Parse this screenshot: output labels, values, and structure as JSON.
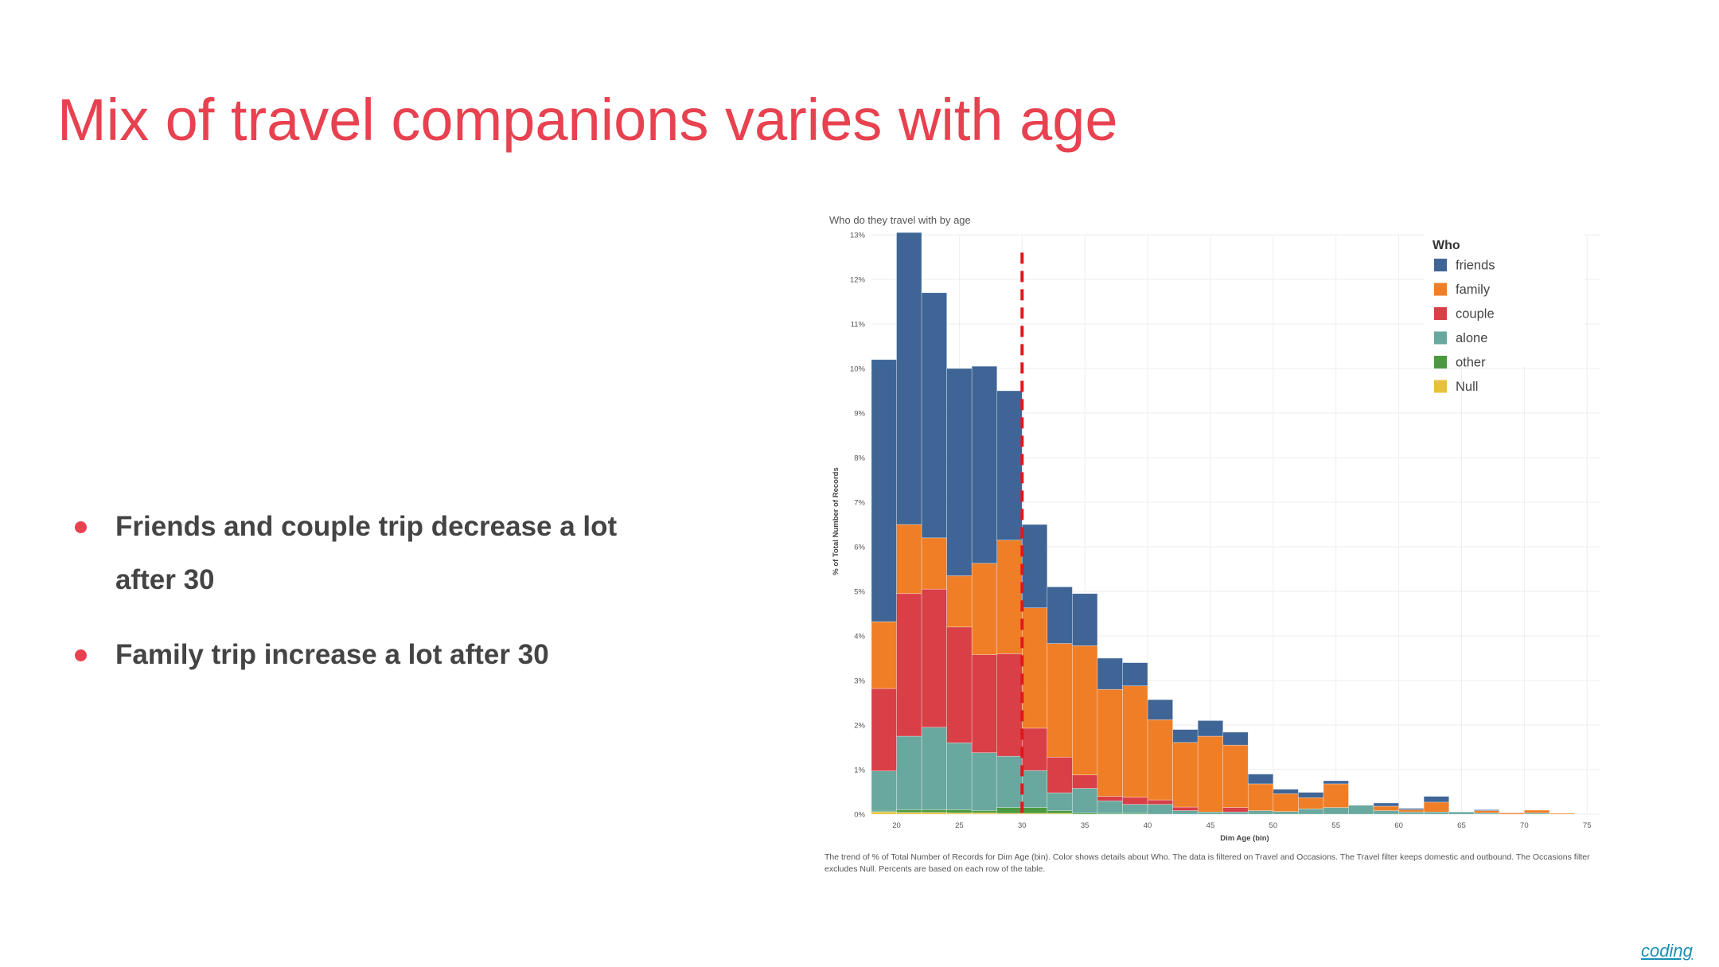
{
  "slide": {
    "title": "Mix of travel companions varies with age",
    "bullets": [
      "Friends and couple trip decrease a lot after 30",
      "Family trip increase a lot after 30"
    ],
    "footer_link": "coding"
  },
  "chart_data": {
    "type": "bar",
    "stacked": true,
    "title": "Who do they travel with by age",
    "xlabel": "Dim Age (bin)",
    "ylabel": "% of Total Number of Records",
    "xlim": [
      18,
      76
    ],
    "ylim": [
      0,
      13
    ],
    "x_ticks": [
      "20",
      "25",
      "30",
      "35",
      "40",
      "45",
      "50",
      "55",
      "60",
      "65",
      "70",
      "75"
    ],
    "y_ticks": [
      "0%",
      "1%",
      "2%",
      "3%",
      "4%",
      "5%",
      "6%",
      "7%",
      "8%",
      "9%",
      "10%",
      "11%",
      "12%",
      "13%"
    ],
    "grid": true,
    "bin_width": 2,
    "bins": [
      18,
      20,
      22,
      24,
      26,
      28,
      30,
      32,
      34,
      36,
      38,
      40,
      42,
      44,
      46,
      48,
      50,
      52,
      54,
      56,
      58,
      60,
      62,
      64,
      66,
      68,
      70,
      72
    ],
    "legend": {
      "title": "Who",
      "position": "top-right"
    },
    "series": [
      {
        "name": "Null",
        "color": "#e8c13a",
        "values": [
          0.05,
          0.04,
          0.04,
          0.03,
          0.03,
          0.02,
          0.02,
          0.02,
          0,
          0,
          0,
          0,
          0,
          0,
          0,
          0,
          0,
          0,
          0,
          0,
          0,
          0,
          0,
          0,
          0,
          0,
          0,
          0
        ]
      },
      {
        "name": "other",
        "color": "#4a9a3e",
        "values": [
          0.02,
          0.06,
          0.06,
          0.07,
          0.05,
          0.13,
          0.13,
          0.06,
          0.03,
          0.02,
          0.02,
          0,
          0,
          0,
          0,
          0,
          0,
          0,
          0,
          0,
          0,
          0,
          0,
          0,
          0,
          0,
          0,
          0
        ]
      },
      {
        "name": "alone",
        "color": "#69a89e",
        "values": [
          0.9,
          1.65,
          1.85,
          1.5,
          1.3,
          1.15,
          0.83,
          0.4,
          0.55,
          0.28,
          0.2,
          0.22,
          0.08,
          0.05,
          0.05,
          0.08,
          0.06,
          0.12,
          0.15,
          0.2,
          0.08,
          0.05,
          0.05,
          0.05,
          0.03,
          0,
          0.03,
          0
        ]
      },
      {
        "name": "couple",
        "color": "#d83f47",
        "values": [
          1.85,
          3.2,
          3.1,
          2.6,
          2.2,
          2.3,
          0.95,
          0.8,
          0.3,
          0.1,
          0.16,
          0.1,
          0.08,
          0,
          0.1,
          0,
          0,
          0,
          0,
          0,
          0,
          0,
          0,
          0,
          0,
          0,
          0,
          0
        ]
      },
      {
        "name": "family",
        "color": "#f07e26",
        "values": [
          1.5,
          1.55,
          1.15,
          1.15,
          2.05,
          2.55,
          2.7,
          2.55,
          2.9,
          2.4,
          2.5,
          1.8,
          1.45,
          1.7,
          1.4,
          0.6,
          0.4,
          0.25,
          0.53,
          0,
          0.1,
          0.05,
          0.22,
          0,
          0.05,
          0.03,
          0.06,
          0.02
        ]
      },
      {
        "name": "friends",
        "color": "#3f6596",
        "values": [
          5.88,
          6.55,
          5.5,
          4.65,
          4.42,
          3.35,
          1.87,
          1.27,
          1.17,
          0.7,
          0.52,
          0.45,
          0.29,
          0.35,
          0.29,
          0.22,
          0.1,
          0.12,
          0.07,
          0,
          0.07,
          0.03,
          0.13,
          0,
          0.02,
          0,
          0,
          0
        ]
      }
    ],
    "reference_line": {
      "x": 30,
      "color": "#e0181c",
      "style": "dashed"
    },
    "caption": "The trend of % of Total Number of Records for Dim Age (bin).  Color shows details about Who. The data is filtered on Travel and Occasions. The Travel filter keeps domestic and outbound. The Occasions filter excludes Null. Percents are based on each row of the table."
  }
}
